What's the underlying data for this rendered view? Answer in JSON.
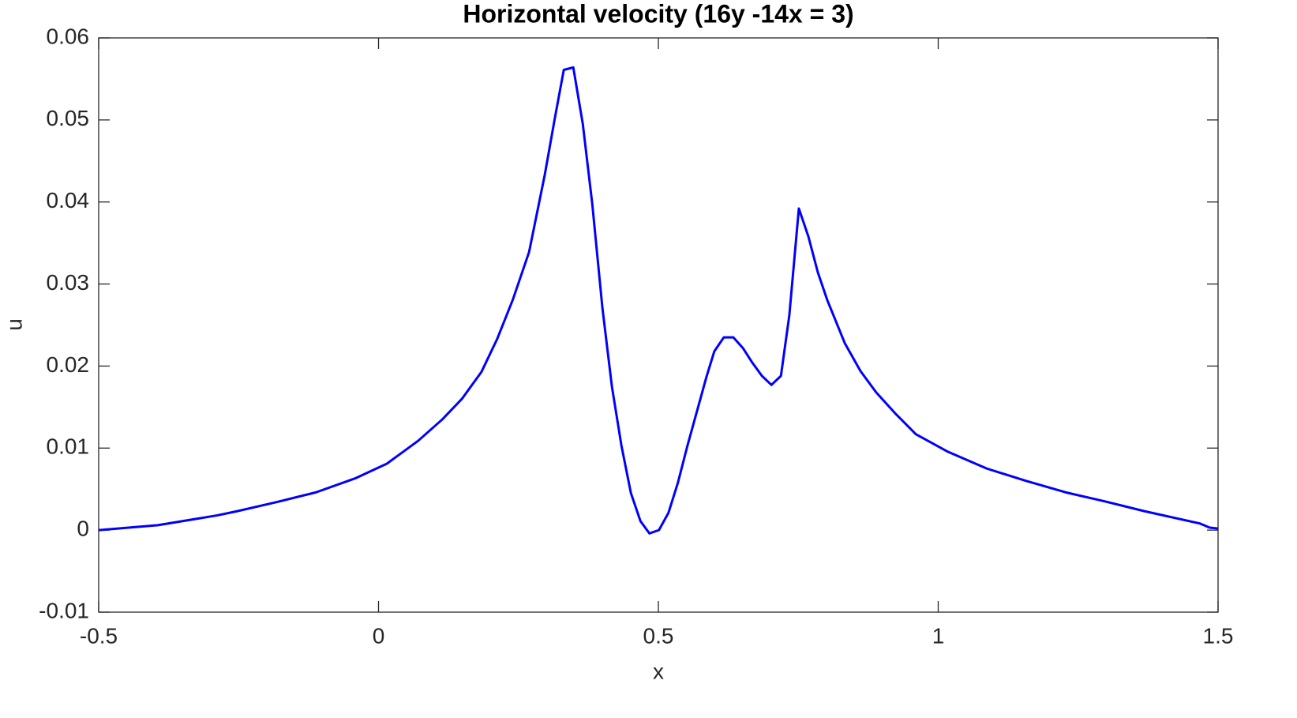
{
  "chart_data": {
    "type": "line",
    "title": "Horizontal velocity (16y -14x = 3)",
    "x_label": "x",
    "y_label": "u",
    "x": [
      -0.5,
      -0.394,
      -0.288,
      -0.253,
      -0.183,
      -0.112,
      -0.042,
      0.015,
      0.071,
      0.114,
      0.149,
      0.184,
      0.212,
      0.24,
      0.269,
      0.297,
      0.315,
      0.331,
      0.348,
      0.365,
      0.382,
      0.4,
      0.417,
      0.434,
      0.451,
      0.468,
      0.484,
      0.501,
      0.518,
      0.535,
      0.552,
      0.586,
      0.6,
      0.617,
      0.634,
      0.651,
      0.668,
      0.685,
      0.702,
      0.719,
      0.734,
      0.751,
      0.768,
      0.785,
      0.802,
      0.833,
      0.861,
      0.889,
      0.925,
      0.96,
      1.016,
      1.087,
      1.157,
      1.228,
      1.298,
      1.369,
      1.468,
      1.485,
      1.5
    ],
    "values": [
      0,
      0.0006,
      0.0018,
      0.0023,
      0.0034,
      0.0046,
      0.0063,
      0.0081,
      0.0109,
      0.0135,
      0.016,
      0.0193,
      0.0233,
      0.0281,
      0.0339,
      0.0433,
      0.0502,
      0.0561,
      0.0564,
      0.0495,
      0.0397,
      0.0271,
      0.0175,
      0.0103,
      0.0045,
      0.0011,
      -0.0004,
      0,
      0.0021,
      0.0058,
      0.0103,
      0.0187,
      0.0218,
      0.0235,
      0.0235,
      0.0222,
      0.0204,
      0.0188,
      0.0177,
      0.0188,
      0.0262,
      0.0392,
      0.0358,
      0.0314,
      0.028,
      0.0228,
      0.0194,
      0.0168,
      0.0141,
      0.0117,
      0.0096,
      0.0075,
      0.006,
      0.0046,
      0.0035,
      0.0023,
      0.0008,
      0.0003,
      0.0002
    ],
    "color": "#0000ff",
    "xlim": [
      -0.5,
      1.5
    ],
    "xticks": [
      -0.5,
      0,
      0.5,
      1,
      1.5
    ],
    "ylim": [
      -0.01,
      0.06
    ],
    "yticks": [
      -0.01,
      0,
      0.01,
      0.02,
      0.03,
      0.04,
      0.05,
      0.06
    ],
    "grid": false
  }
}
